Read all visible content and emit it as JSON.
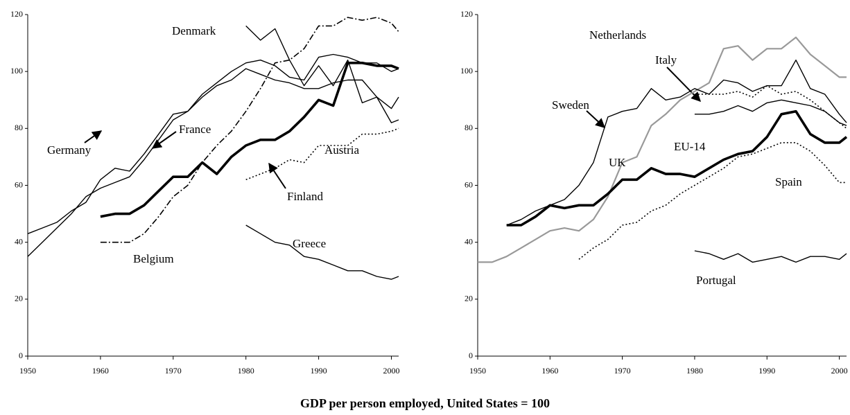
{
  "caption": "GDP per person employed, United States = 100",
  "chart_data": [
    {
      "type": "line",
      "x": [
        1950,
        1952,
        1954,
        1956,
        1958,
        1960,
        1962,
        1964,
        1966,
        1968,
        1970,
        1972,
        1974,
        1976,
        1978,
        1980,
        1982,
        1984,
        1986,
        1988,
        1990,
        1992,
        1994,
        1996,
        1998,
        2000,
        2001
      ],
      "xlim": [
        1950,
        2001
      ],
      "xticks": [
        1950,
        1960,
        1970,
        1980,
        1990,
        2000
      ],
      "ylim": [
        0,
        120
      ],
      "yticks": [
        0,
        20,
        40,
        60,
        80,
        100,
        120
      ],
      "series": [
        {
          "name": "Germany",
          "color": "#000000",
          "style": "thin",
          "values": [
            43,
            45,
            47,
            51,
            54,
            62,
            66,
            65,
            71,
            78,
            85,
            86,
            92,
            96,
            100,
            103,
            104,
            102,
            98,
            97,
            105,
            106,
            105,
            103,
            103,
            100,
            101
          ]
        },
        {
          "name": "France",
          "color": "#000000",
          "style": "thin",
          "values": [
            35,
            40,
            45,
            50,
            56,
            59,
            61,
            63,
            69,
            76,
            83,
            86,
            91,
            95,
            97,
            101,
            99,
            97,
            96,
            94,
            94,
            96,
            97,
            97,
            91,
            87,
            91
          ]
        },
        {
          "name": "Denmark",
          "color": "#000000",
          "style": "thin",
          "values": [
            null,
            null,
            null,
            null,
            null,
            null,
            null,
            null,
            null,
            null,
            null,
            null,
            null,
            null,
            null,
            116,
            111,
            115,
            104,
            95,
            102,
            95,
            104,
            89,
            91,
            82,
            83
          ]
        },
        {
          "name": "Finland",
          "color": "#000000",
          "style": "thick",
          "values": [
            null,
            null,
            null,
            null,
            null,
            49,
            50,
            50,
            53,
            58,
            63,
            63,
            68,
            64,
            70,
            74,
            76,
            76,
            79,
            84,
            90,
            88,
            103,
            103,
            102,
            102,
            101
          ]
        },
        {
          "name": "Belgium",
          "color": "#000000",
          "style": "dashdot",
          "values": [
            null,
            null,
            null,
            null,
            null,
            40,
            40,
            40,
            43,
            49,
            56,
            60,
            68,
            74,
            79,
            86,
            94,
            103,
            104,
            108,
            116,
            116,
            119,
            118,
            119,
            117,
            114
          ]
        },
        {
          "name": "Austria",
          "color": "#000000",
          "style": "dotted",
          "values": [
            null,
            null,
            null,
            null,
            null,
            null,
            null,
            null,
            null,
            null,
            null,
            null,
            null,
            null,
            null,
            62,
            64,
            66,
            69,
            68,
            74,
            74,
            74,
            78,
            78,
            79,
            80
          ]
        },
        {
          "name": "Greece",
          "color": "#000000",
          "style": "thin",
          "values": [
            null,
            null,
            null,
            null,
            null,
            null,
            null,
            null,
            null,
            null,
            null,
            null,
            null,
            null,
            null,
            46,
            43,
            40,
            39,
            35,
            34,
            32,
            30,
            30,
            28,
            27,
            28
          ]
        }
      ]
    },
    {
      "type": "line",
      "x": [
        1950,
        1952,
        1954,
        1956,
        1958,
        1960,
        1962,
        1964,
        1966,
        1968,
        1970,
        1972,
        1974,
        1976,
        1978,
        1980,
        1982,
        1984,
        1986,
        1988,
        1990,
        1992,
        1994,
        1996,
        1998,
        2000,
        2001
      ],
      "xlim": [
        1950,
        2001
      ],
      "xticks": [
        1950,
        1960,
        1970,
        1980,
        1990,
        2000
      ],
      "ylim": [
        0,
        120
      ],
      "yticks": [
        0,
        20,
        40,
        60,
        80,
        100,
        120
      ],
      "series": [
        {
          "name": "Netherlands",
          "color": "#999999",
          "style": "gray",
          "values": [
            33,
            33,
            35,
            38,
            41,
            44,
            45,
            44,
            48,
            56,
            68,
            70,
            81,
            85,
            90,
            93,
            96,
            108,
            109,
            104,
            108,
            108,
            112,
            106,
            102,
            98,
            98
          ]
        },
        {
          "name": "Italy",
          "color": "#000000",
          "style": "dotted",
          "values": [
            null,
            null,
            null,
            null,
            null,
            null,
            null,
            null,
            null,
            null,
            null,
            null,
            null,
            null,
            null,
            92,
            92,
            92,
            93,
            91,
            95,
            92,
            93,
            90,
            86,
            82,
            80
          ]
        },
        {
          "name": "Sweden",
          "color": "#000000",
          "style": "thin",
          "values": [
            null,
            null,
            46,
            48,
            51,
            53,
            55,
            60,
            68,
            84,
            86,
            87,
            94,
            90,
            91,
            94,
            92,
            97,
            96,
            93,
            95,
            95,
            104,
            94,
            92,
            85,
            82
          ]
        },
        {
          "name": "EU-14",
          "color": "#000000",
          "style": "thin",
          "values": [
            null,
            null,
            null,
            null,
            null,
            null,
            null,
            null,
            null,
            null,
            null,
            null,
            null,
            null,
            null,
            85,
            85,
            86,
            88,
            86,
            89,
            90,
            89,
            88,
            86,
            82,
            81
          ]
        },
        {
          "name": "UK",
          "color": "#000000",
          "style": "thick",
          "values": [
            null,
            null,
            46,
            46,
            49,
            53,
            52,
            53,
            53,
            57,
            62,
            62,
            66,
            64,
            64,
            63,
            66,
            69,
            71,
            72,
            77,
            85,
            86,
            78,
            75,
            75,
            77
          ]
        },
        {
          "name": "Spain",
          "color": "#000000",
          "style": "dotted",
          "values": [
            null,
            null,
            null,
            null,
            null,
            null,
            null,
            34,
            38,
            41,
            46,
            47,
            51,
            53,
            57,
            60,
            63,
            66,
            70,
            71,
            73,
            75,
            75,
            72,
            67,
            61,
            61
          ]
        },
        {
          "name": "Portugal",
          "color": "#000000",
          "style": "thin",
          "values": [
            null,
            null,
            null,
            null,
            null,
            null,
            null,
            null,
            null,
            null,
            null,
            null,
            null,
            null,
            null,
            37,
            36,
            34,
            36,
            33,
            34,
            35,
            33,
            35,
            35,
            34,
            36
          ]
        }
      ]
    }
  ]
}
